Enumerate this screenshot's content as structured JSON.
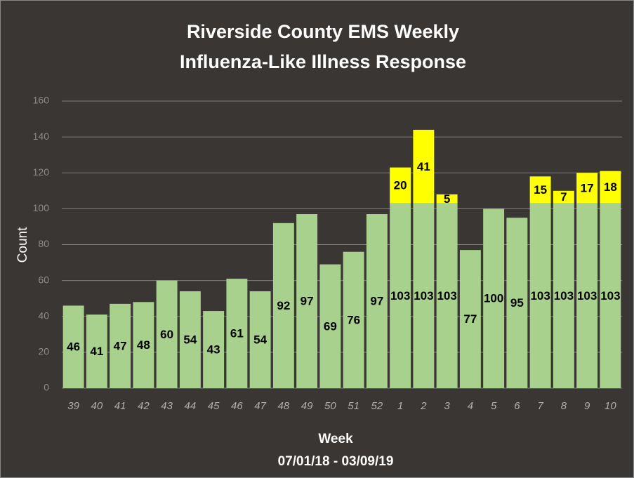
{
  "chart_data": {
    "type": "stacked_bar",
    "title": [
      "Riverside County EMS Weekly",
      "Influenza-Like Illness Response"
    ],
    "x_label": "Week",
    "subtitle": "07/01/18 - 03/09/19",
    "y_label": "Count",
    "categories": [
      "39",
      "40",
      "41",
      "42",
      "43",
      "44",
      "45",
      "46",
      "47",
      "48",
      "49",
      "50",
      "51",
      "52",
      "1",
      "2",
      "3",
      "4",
      "5",
      "6",
      "7",
      "8",
      "9",
      "10"
    ],
    "series": [
      {
        "color": "#a9d18e",
        "values": [
          46,
          41,
          47,
          48,
          60,
          54,
          43,
          61,
          54,
          92,
          97,
          69,
          76,
          97,
          103,
          103,
          103,
          77,
          100,
          95,
          103,
          103,
          103,
          103
        ]
      },
      {
        "color": "#ffff00",
        "values": [
          null,
          null,
          null,
          null,
          null,
          null,
          null,
          null,
          null,
          null,
          null,
          null,
          null,
          null,
          20,
          41,
          5,
          null,
          null,
          null,
          15,
          7,
          17,
          18
        ]
      }
    ],
    "ylim": [
      0,
      160
    ],
    "yticks": [
      0,
      20,
      40,
      60,
      80,
      100,
      120,
      140,
      160
    ],
    "grid": true
  }
}
